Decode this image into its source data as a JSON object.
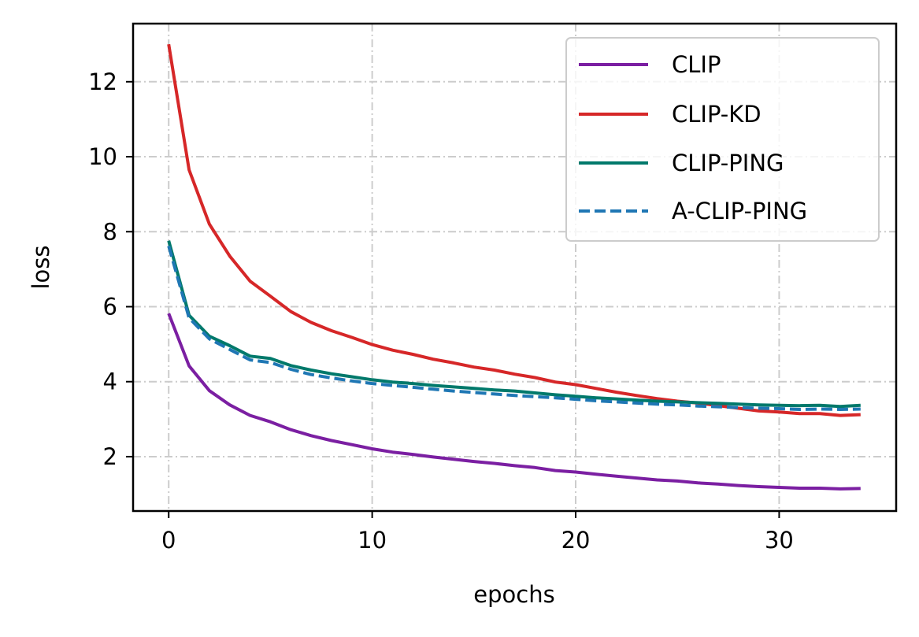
{
  "chart_data": {
    "type": "line",
    "title": "",
    "xlabel": "epochs",
    "ylabel": "loss",
    "xlim": [
      -1.75,
      35.75
    ],
    "ylim": [
      0.55,
      13.55
    ],
    "xticks": [
      0,
      10,
      20,
      30
    ],
    "yticks": [
      2,
      4,
      6,
      8,
      10,
      12
    ],
    "grid": true,
    "legend_position": "top-right",
    "x": [
      0,
      1,
      2,
      3,
      4,
      5,
      6,
      7,
      8,
      9,
      10,
      11,
      12,
      13,
      14,
      15,
      16,
      17,
      18,
      19,
      20,
      21,
      22,
      23,
      24,
      25,
      26,
      27,
      28,
      29,
      30,
      31,
      32,
      33,
      34
    ],
    "series": [
      {
        "name": "CLIP",
        "color": "#7b1fa2",
        "style": "solid",
        "values": [
          5.82,
          4.42,
          3.76,
          3.38,
          3.1,
          2.93,
          2.72,
          2.56,
          2.43,
          2.32,
          2.21,
          2.12,
          2.06,
          1.99,
          1.93,
          1.87,
          1.82,
          1.76,
          1.71,
          1.63,
          1.59,
          1.53,
          1.48,
          1.43,
          1.38,
          1.35,
          1.3,
          1.27,
          1.23,
          1.2,
          1.18,
          1.16,
          1.16,
          1.14,
          1.15
        ]
      },
      {
        "name": "CLIP-KD",
        "color": "#d62728",
        "style": "solid",
        "values": [
          13.0,
          9.65,
          8.2,
          7.35,
          6.68,
          6.28,
          5.87,
          5.58,
          5.36,
          5.18,
          4.99,
          4.84,
          4.73,
          4.6,
          4.5,
          4.39,
          4.31,
          4.2,
          4.11,
          3.99,
          3.92,
          3.82,
          3.72,
          3.63,
          3.55,
          3.48,
          3.43,
          3.36,
          3.29,
          3.22,
          3.19,
          3.15,
          3.15,
          3.1,
          3.12
        ]
      },
      {
        "name": "CLIP-PING",
        "color": "#00796b",
        "style": "solid",
        "values": [
          7.76,
          5.77,
          5.21,
          4.96,
          4.68,
          4.62,
          4.43,
          4.31,
          4.21,
          4.13,
          4.05,
          3.99,
          3.95,
          3.9,
          3.86,
          3.82,
          3.78,
          3.75,
          3.7,
          3.65,
          3.61,
          3.57,
          3.54,
          3.51,
          3.48,
          3.46,
          3.44,
          3.42,
          3.4,
          3.38,
          3.37,
          3.36,
          3.37,
          3.34,
          3.37
        ]
      },
      {
        "name": "A-CLIP-PING",
        "color": "#1f77b4",
        "style": "dashed",
        "values": [
          7.62,
          5.7,
          5.14,
          4.86,
          4.58,
          4.51,
          4.33,
          4.19,
          4.1,
          4.02,
          3.95,
          3.9,
          3.85,
          3.8,
          3.75,
          3.71,
          3.67,
          3.63,
          3.6,
          3.57,
          3.53,
          3.49,
          3.46,
          3.43,
          3.4,
          3.38,
          3.35,
          3.33,
          3.31,
          3.29,
          3.28,
          3.26,
          3.27,
          3.26,
          3.27
        ]
      }
    ]
  }
}
